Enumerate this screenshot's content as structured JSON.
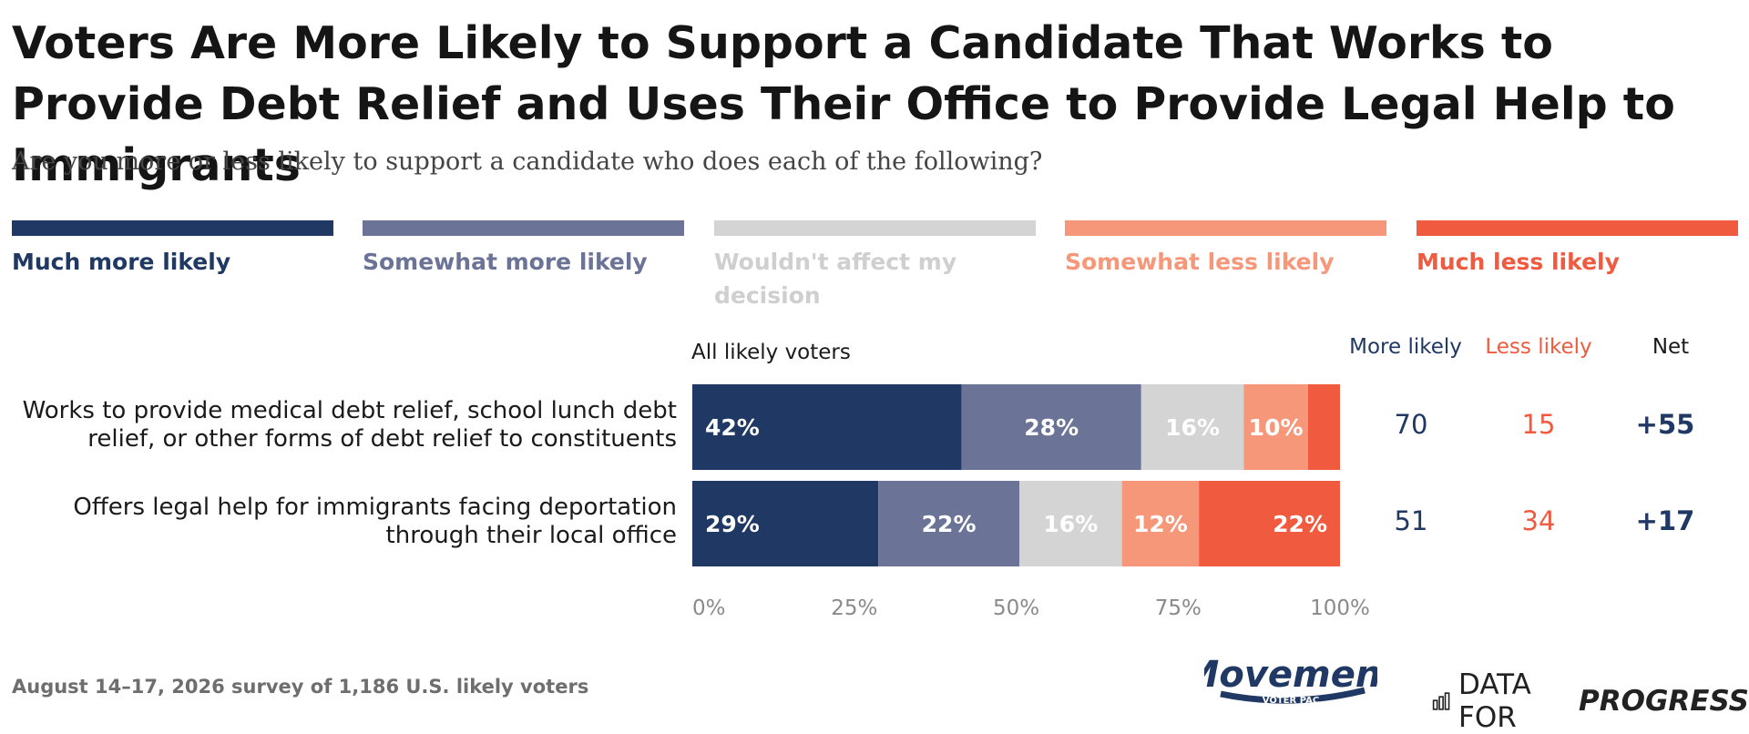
{
  "title": "Voters Are More Likely to Support a Candidate That Works to Provide Debt Relief and Uses Their Office to Provide Legal Help to Immigrants",
  "subtitle": "Are you more or less likely to support a candidate who does each of the following?",
  "colors": {
    "much_more": "#1f3864",
    "somewhat_more": "#6b7397",
    "neutral": "#d4d4d4",
    "somewhat_less": "#f79779",
    "much_less": "#f05a3f"
  },
  "legend": [
    {
      "label": "Much more likely",
      "color": "#1f3864"
    },
    {
      "label": "Somewhat more likely",
      "color": "#6b7397"
    },
    {
      "label": "Wouldn't affect my decision",
      "color": "#d4d4d4"
    },
    {
      "label": "Somewhat less likely",
      "color": "#f79779"
    },
    {
      "label": "Much less likely",
      "color": "#f05a3f"
    }
  ],
  "columns": {
    "group": "All likely voters",
    "more": "More likely",
    "less": "Less likely",
    "net": "Net"
  },
  "chart_data": {
    "type": "bar",
    "orientation": "horizontal-stacked",
    "categories": [
      "Works to provide medical debt relief, school lunch debt relief, or other forms of debt relief to constituents",
      "Offers legal help for immigrants facing deportation through their local office"
    ],
    "series": [
      {
        "name": "Much more likely",
        "values": [
          42,
          29
        ]
      },
      {
        "name": "Somewhat more likely",
        "values": [
          28,
          22
        ]
      },
      {
        "name": "Wouldn't affect my decision",
        "values": [
          16,
          16
        ]
      },
      {
        "name": "Somewhat less likely",
        "values": [
          10,
          12
        ]
      },
      {
        "name": "Much less likely",
        "values": [
          5,
          22
        ]
      }
    ],
    "data_labels": [
      [
        "42%",
        "28%",
        "16%",
        "10%",
        ""
      ],
      [
        "29%",
        "22%",
        "16%",
        "12%",
        "22%"
      ]
    ],
    "xlim": [
      0,
      100
    ],
    "xticks": [
      "0%",
      "25%",
      "50%",
      "75%",
      "100%"
    ],
    "more_likely": [
      "70",
      "51"
    ],
    "less_likely": [
      "15",
      "34"
    ],
    "net": [
      "+55",
      "+17"
    ]
  },
  "footer": "August 14–17, 2026 survey of 1,186 U.S. likely voters",
  "logos": {
    "movement": "Movement",
    "movement_sub": "VOTER PAC",
    "dfp_light": "DATA FOR",
    "dfp_bold": "PROGRESS"
  }
}
